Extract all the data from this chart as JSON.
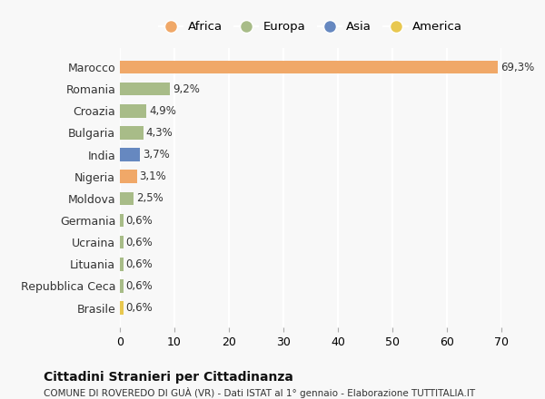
{
  "categories": [
    "Marocco",
    "Romania",
    "Croazia",
    "Bulgaria",
    "India",
    "Nigeria",
    "Moldova",
    "Germania",
    "Ucraina",
    "Lituania",
    "Repubblica Ceca",
    "Brasile"
  ],
  "values": [
    69.3,
    9.2,
    4.9,
    4.3,
    3.7,
    3.1,
    2.5,
    0.6,
    0.6,
    0.6,
    0.6,
    0.6
  ],
  "labels": [
    "69,3%",
    "9,2%",
    "4,9%",
    "4,3%",
    "3,7%",
    "3,1%",
    "2,5%",
    "0,6%",
    "0,6%",
    "0,6%",
    "0,6%",
    "0,6%"
  ],
  "colors": [
    "#F0A868",
    "#A8BC88",
    "#A8BC88",
    "#A8BC88",
    "#6688C0",
    "#F0A868",
    "#A8BC88",
    "#A8BC88",
    "#A8BC88",
    "#A8BC88",
    "#A8BC88",
    "#E8C850"
  ],
  "legend_labels": [
    "Africa",
    "Europa",
    "Asia",
    "America"
  ],
  "legend_colors": [
    "#F0A868",
    "#A8BC88",
    "#6688C0",
    "#E8C850"
  ],
  "title": "Cittadini Stranieri per Cittadinanza",
  "subtitle": "COMUNE DI ROVEREDO DI GUÀ (VR) - Dati ISTAT al 1° gennaio - Elaborazione TUTTITALIA.IT",
  "xlim": [
    0,
    70
  ],
  "xticks": [
    0,
    10,
    20,
    30,
    40,
    50,
    60,
    70
  ],
  "bg_color": "#f8f8f8",
  "grid_color": "#ffffff",
  "bar_height": 0.6
}
